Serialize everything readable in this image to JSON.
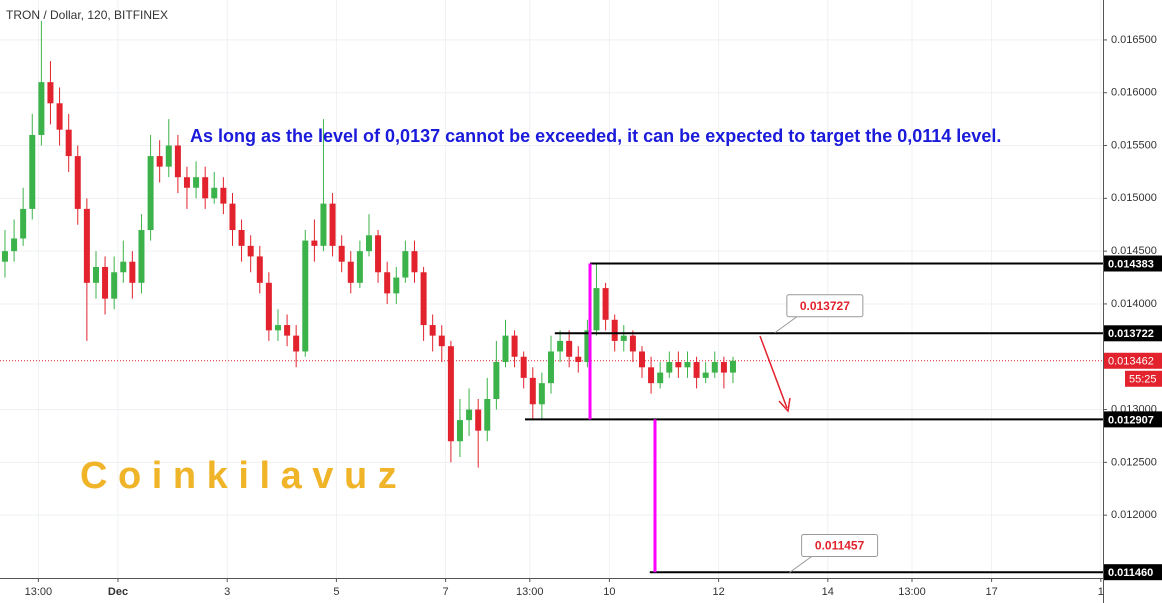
{
  "chart_data": {
    "type": "candlestick",
    "title": "TRON / Dollar, 120, BITFINEX",
    "annotation": "As long as the level of 0,0137 cannot be exceeded, it can be expected to target the 0,0114 level.",
    "watermark": "C o i n k i l a v u z",
    "countdown": "55:25",
    "up_color": "#3cb34a",
    "down_color": "#e2222c",
    "xlim": [
      -1.161,
      19.04
    ],
    "ylim": [
      0.011405,
      0.016878
    ],
    "xticks": [
      {
        "value": -0.458,
        "label": "13:00"
      },
      {
        "value": 1,
        "label": "Dec"
      },
      3,
      5,
      7,
      {
        "value": 8.542,
        "label": "13:00"
      },
      10,
      12,
      14,
      {
        "value": 15.542,
        "label": "13:00"
      },
      17,
      {
        "value": 19,
        "label": "1"
      }
    ],
    "yticks": [
      {
        "value": 0.0165,
        "label": "0.016500"
      },
      {
        "value": 0.016,
        "label": "0.016000"
      },
      {
        "value": 0.0155,
        "label": "0.015500"
      },
      {
        "value": 0.015,
        "label": "0.015000"
      },
      {
        "value": 0.0145,
        "label": "0.014500"
      },
      {
        "value": 0.014,
        "label": "0.014000"
      },
      {
        "value": 0.013,
        "label": "0.013000"
      },
      {
        "value": 0.0125,
        "label": "0.012500"
      },
      {
        "value": 0.012,
        "label": "0.012000"
      }
    ],
    "x": [
      -1.07,
      -0.903,
      -0.737,
      -0.57,
      -0.403,
      -0.237,
      -0.07,
      0.097,
      0.263,
      0.43,
      0.597,
      0.763,
      0.93,
      1.097,
      1.263,
      1.43,
      1.597,
      1.763,
      1.93,
      2.097,
      2.263,
      2.43,
      2.597,
      2.763,
      2.93,
      3.097,
      3.263,
      3.43,
      3.597,
      3.763,
      3.93,
      4.097,
      4.263,
      4.43,
      4.597,
      4.763,
      4.93,
      5.097,
      5.263,
      5.43,
      5.597,
      5.763,
      5.93,
      6.097,
      6.263,
      6.43,
      6.597,
      6.763,
      6.93,
      7.097,
      7.263,
      7.43,
      7.597,
      7.763,
      7.93,
      8.097,
      8.263,
      8.43,
      8.597,
      8.763,
      8.93,
      9.097,
      9.263,
      9.43,
      9.597,
      9.763,
      9.93,
      10.097,
      10.263,
      10.43,
      10.597,
      10.763,
      10.93,
      11.097,
      11.263,
      11.43,
      11.597,
      11.763,
      11.93,
      12.097,
      12.263
    ],
    "open": [
      0.0144,
      0.0145,
      0.01462,
      0.0149,
      0.0156,
      0.0161,
      0.0159,
      0.01565,
      0.0154,
      0.0149,
      0.0142,
      0.01435,
      0.01405,
      0.0143,
      0.0144,
      0.0142,
      0.0147,
      0.0154,
      0.0153,
      0.0155,
      0.0152,
      0.0151,
      0.0152,
      0.015,
      0.0151,
      0.01495,
      0.0147,
      0.01455,
      0.01445,
      0.0142,
      0.01375,
      0.0138,
      0.0137,
      0.01355,
      0.0146,
      0.01455,
      0.01495,
      0.01455,
      0.0144,
      0.0142,
      0.0145,
      0.01465,
      0.0143,
      0.0141,
      0.01425,
      0.0145,
      0.0143,
      0.0138,
      0.0137,
      0.0136,
      0.0127,
      0.0129,
      0.013,
      0.0128,
      0.0131,
      0.01345,
      0.0137,
      0.0135,
      0.0133,
      0.01305,
      0.01325,
      0.01355,
      0.01365,
      0.0135,
      0.01345,
      0.01375,
      0.01415,
      0.01385,
      0.01365,
      0.0137,
      0.01355,
      0.0134,
      0.01325,
      0.01335,
      0.01345,
      0.0134,
      0.01345,
      0.0133,
      0.01335,
      0.01345,
      0.01335
    ],
    "high": [
      0.0147,
      0.0148,
      0.0151,
      0.0158,
      0.01668,
      0.0163,
      0.01605,
      0.0158,
      0.0155,
      0.015,
      0.0145,
      0.01445,
      0.01445,
      0.0146,
      0.0145,
      0.01485,
      0.0156,
      0.01555,
      0.01575,
      0.0156,
      0.0153,
      0.01535,
      0.0153,
      0.01525,
      0.0152,
      0.01505,
      0.0148,
      0.01465,
      0.01455,
      0.0143,
      0.01395,
      0.0139,
      0.0138,
      0.0147,
      0.0148,
      0.01575,
      0.01505,
      0.01465,
      0.0145,
      0.0146,
      0.01485,
      0.0147,
      0.0144,
      0.01435,
      0.0146,
      0.0146,
      0.01435,
      0.0139,
      0.0138,
      0.01365,
      0.0131,
      0.0132,
      0.0131,
      0.0133,
      0.01365,
      0.01385,
      0.01375,
      0.01355,
      0.0134,
      0.01335,
      0.0137,
      0.01375,
      0.01375,
      0.0136,
      0.01385,
      0.01438,
      0.0142,
      0.0139,
      0.0138,
      0.01375,
      0.0136,
      0.0135,
      0.01345,
      0.01355,
      0.01355,
      0.01355,
      0.0135,
      0.01345,
      0.01355,
      0.0135,
      0.0135
    ],
    "low": [
      0.01425,
      0.0144,
      0.01455,
      0.0148,
      0.0155,
      0.0157,
      0.0155,
      0.01525,
      0.01475,
      0.01365,
      0.01405,
      0.0139,
      0.01395,
      0.0142,
      0.01405,
      0.0141,
      0.0146,
      0.01515,
      0.0152,
      0.01505,
      0.0149,
      0.015,
      0.0149,
      0.01495,
      0.01485,
      0.01455,
      0.0144,
      0.0143,
      0.0141,
      0.01365,
      0.01365,
      0.0136,
      0.0134,
      0.0135,
      0.0144,
      0.0145,
      0.01445,
      0.0143,
      0.0141,
      0.01415,
      0.01445,
      0.0142,
      0.014,
      0.014,
      0.0142,
      0.0142,
      0.01365,
      0.01355,
      0.01345,
      0.0125,
      0.01255,
      0.01275,
      0.01245,
      0.0127,
      0.013,
      0.0134,
      0.0134,
      0.0132,
      0.0129,
      0.0129,
      0.01315,
      0.01345,
      0.0134,
      0.01335,
      0.0134,
      0.0137,
      0.01375,
      0.01355,
      0.01355,
      0.01345,
      0.0133,
      0.01315,
      0.0132,
      0.0133,
      0.0133,
      0.0133,
      0.0132,
      0.01325,
      0.0133,
      0.0132,
      0.01325
    ],
    "close": [
      0.0145,
      0.01462,
      0.0149,
      0.0156,
      0.0161,
      0.0159,
      0.01565,
      0.0154,
      0.0149,
      0.0142,
      0.01435,
      0.01405,
      0.0143,
      0.0144,
      0.0142,
      0.0147,
      0.0154,
      0.0153,
      0.0155,
      0.0152,
      0.0151,
      0.0152,
      0.015,
      0.0151,
      0.01495,
      0.0147,
      0.01455,
      0.01445,
      0.0142,
      0.01375,
      0.0138,
      0.0137,
      0.01355,
      0.0146,
      0.01455,
      0.01495,
      0.01455,
      0.0144,
      0.0142,
      0.0145,
      0.01465,
      0.0143,
      0.0141,
      0.01425,
      0.0145,
      0.0143,
      0.0138,
      0.0137,
      0.0136,
      0.0127,
      0.0129,
      0.013,
      0.0128,
      0.0131,
      0.01345,
      0.0137,
      0.0135,
      0.0133,
      0.01305,
      0.01325,
      0.01355,
      0.01365,
      0.0135,
      0.01345,
      0.01375,
      0.01415,
      0.01385,
      0.01365,
      0.0137,
      0.01355,
      0.0134,
      0.01325,
      0.01335,
      0.01345,
      0.0134,
      0.01345,
      0.0133,
      0.01335,
      0.01345,
      0.01335,
      0.013462
    ],
    "current_price": 0.013462,
    "levels": [
      {
        "value": 0.014383,
        "x_start": 9.645
      },
      {
        "value": 0.013722,
        "x_start": 9.0
      },
      {
        "value": 0.012907,
        "x_start": 8.454
      },
      {
        "value": {
          "value": 0.01146,
          "label": "0.011460"
        },
        "x_start": 10.74
      }
    ],
    "ranges": [
      {
        "x": 9.645,
        "from": 0.014383,
        "to": 0.012907
      },
      {
        "x": 10.835,
        "from": 0.012907,
        "to": 0.01146
      }
    ],
    "callouts": [
      {
        "value": 0.013727,
        "x": 13.03
      },
      {
        "value": 0.011457,
        "x": 13.3
      }
    ]
  }
}
